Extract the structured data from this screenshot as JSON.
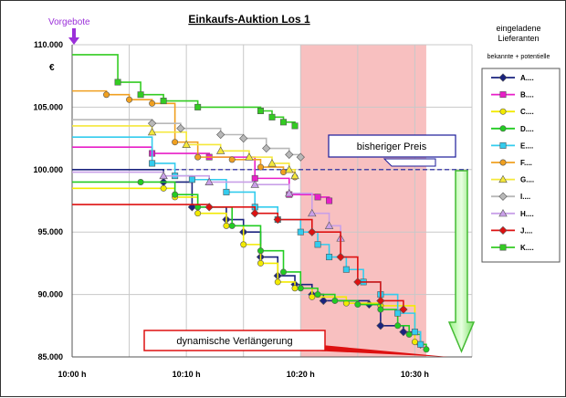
{
  "chart_data": {
    "type": "line",
    "title": "Einkaufs-Auktion Los 1",
    "ylabel": "€",
    "xlabel": "",
    "x_ticks": [
      "10:00 h",
      "10:10 h",
      "10:20 h",
      "10:30 h"
    ],
    "x_range": [
      0,
      35
    ],
    "y_ticks": [
      "85.000",
      "90.000",
      "95.000",
      "100.000",
      "105.000",
      "110.000"
    ],
    "ylim": [
      85000,
      110000
    ],
    "legend": {
      "title": "eingeladene Lieferanten",
      "subtitle": "bekannte + potentielle",
      "placement": "right"
    },
    "annotations": {
      "start_label": "Vorgebote",
      "previous_price_label": "bisheriger Preis",
      "previous_price_value": 100000,
      "extension_label": "dynamische  Verlängerung",
      "extension_window": [
        20,
        31
      ]
    },
    "series": [
      {
        "name": "A....",
        "color": "#1a237e",
        "marker": "diamond",
        "points": [
          [
            0,
            100000
          ],
          [
            8,
            99000
          ],
          [
            10.5,
            97000
          ],
          [
            13.5,
            96000
          ],
          [
            15,
            95000
          ],
          [
            16.5,
            93000
          ],
          [
            18,
            91500
          ],
          [
            19.5,
            90800
          ],
          [
            21,
            90000
          ],
          [
            22,
            89500
          ],
          [
            26,
            89200
          ],
          [
            27,
            87500
          ],
          [
            29,
            87000
          ],
          [
            30.5,
            86000
          ]
        ]
      },
      {
        "name": "B....",
        "color": "#e81ec8",
        "marker": "square",
        "points": [
          [
            0,
            101800
          ],
          [
            7,
            101300
          ],
          [
            12,
            101000
          ],
          [
            16,
            99300
          ],
          [
            19,
            98000
          ],
          [
            21.5,
            97800
          ],
          [
            22.5,
            97500
          ]
        ]
      },
      {
        "name": "C....",
        "color": "#f2ea00",
        "marker": "circle",
        "points": [
          [
            0,
            98500
          ],
          [
            8,
            98500
          ],
          [
            9,
            97800
          ],
          [
            11,
            96500
          ],
          [
            13.5,
            95500
          ],
          [
            15,
            94000
          ],
          [
            16.5,
            92500
          ],
          [
            18,
            91000
          ],
          [
            19.5,
            90500
          ],
          [
            21,
            89800
          ],
          [
            24,
            89300
          ],
          [
            27,
            89100
          ],
          [
            30,
            86200
          ]
        ]
      },
      {
        "name": "D....",
        "color": "#22cc22",
        "marker": "circle",
        "points": [
          [
            0,
            99000
          ],
          [
            6,
            99000
          ],
          [
            9,
            98000
          ],
          [
            11,
            97000
          ],
          [
            14,
            95500
          ],
          [
            16.5,
            93500
          ],
          [
            18.5,
            91800
          ],
          [
            20,
            90500
          ],
          [
            21.5,
            90000
          ],
          [
            23,
            89500
          ],
          [
            25,
            89200
          ],
          [
            27,
            88800
          ],
          [
            28.5,
            87500
          ],
          [
            29.5,
            86800
          ],
          [
            30.5,
            86000
          ],
          [
            31,
            85600
          ]
        ]
      },
      {
        "name": "E....",
        "color": "#33ccee",
        "marker": "square",
        "points": [
          [
            0,
            102600
          ],
          [
            7,
            100500
          ],
          [
            9,
            99500
          ],
          [
            10.5,
            99200
          ],
          [
            13.5,
            98200
          ],
          [
            16,
            97000
          ],
          [
            18,
            96000
          ],
          [
            20,
            95000
          ],
          [
            21.5,
            94000
          ],
          [
            22.5,
            93000
          ],
          [
            24,
            92000
          ],
          [
            25.5,
            91000
          ],
          [
            27,
            90000
          ],
          [
            28.5,
            88500
          ],
          [
            30,
            87000
          ],
          [
            30.5,
            86000
          ]
        ]
      },
      {
        "name": "F....",
        "color": "#f0a020",
        "marker": "circle",
        "points": [
          [
            0,
            106300
          ],
          [
            3,
            106000
          ],
          [
            5,
            105600
          ],
          [
            7,
            105300
          ],
          [
            9,
            102200
          ],
          [
            11,
            101000
          ],
          [
            14,
            100800
          ],
          [
            16.5,
            100200
          ],
          [
            18.5,
            99800
          ],
          [
            19.5,
            99400
          ]
        ]
      },
      {
        "name": "G....",
        "color": "#f5e83a",
        "marker": "triangle",
        "points": [
          [
            0,
            103500
          ],
          [
            7,
            103000
          ],
          [
            10,
            102000
          ],
          [
            13,
            101500
          ],
          [
            15.5,
            101000
          ],
          [
            17.5,
            100500
          ],
          [
            19,
            100000
          ],
          [
            19.5,
            99500
          ]
        ]
      },
      {
        "name": "I....",
        "color": "#b8b8b8",
        "marker": "diamond",
        "points": [
          [
            0,
            104000
          ],
          [
            7,
            103700
          ],
          [
            9.5,
            103300
          ],
          [
            13,
            102800
          ],
          [
            15,
            102500
          ],
          [
            17,
            101700
          ],
          [
            19,
            101200
          ],
          [
            20,
            101000
          ]
        ]
      },
      {
        "name": "H....",
        "color": "#c9a0e8",
        "marker": "triangle",
        "points": [
          [
            0,
            99800
          ],
          [
            8,
            99500
          ],
          [
            12,
            99000
          ],
          [
            16,
            98800
          ],
          [
            19,
            98100
          ],
          [
            21,
            96500
          ],
          [
            22.5,
            95500
          ],
          [
            23.5,
            94500
          ]
        ]
      },
      {
        "name": "J....",
        "color": "#dd1111",
        "marker": "diamond",
        "points": [
          [
            0,
            97200
          ],
          [
            12,
            97000
          ],
          [
            16,
            96500
          ],
          [
            18,
            96000
          ],
          [
            21,
            95000
          ],
          [
            23.5,
            93000
          ],
          [
            25,
            91000
          ],
          [
            27,
            89500
          ],
          [
            29,
            88800
          ]
        ]
      },
      {
        "name": "K....",
        "color": "#33cc22",
        "marker": "square",
        "points": [
          [
            0,
            109200
          ],
          [
            4,
            107000
          ],
          [
            6,
            106000
          ],
          [
            8,
            105500
          ],
          [
            11,
            105000
          ],
          [
            16.5,
            104700
          ],
          [
            17.5,
            104200
          ],
          [
            18.5,
            103800
          ],
          [
            19.5,
            103500
          ]
        ]
      }
    ]
  }
}
